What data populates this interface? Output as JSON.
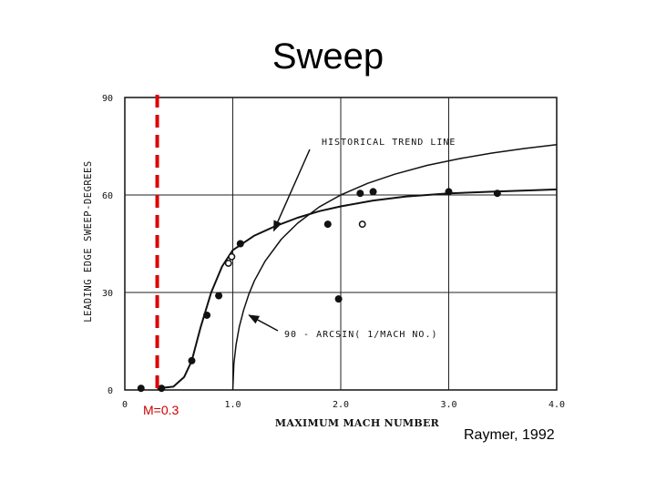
{
  "slide": {
    "title": "Sweep",
    "credit": "Raymer, 1992"
  },
  "chart_data": {
    "type": "scatter",
    "xlabel": "MAXIMUM MACH NUMBER",
    "ylabel": "LEADING EDGE SWEEP-DEGREES",
    "xlim": [
      0,
      4.0
    ],
    "ylim": [
      0,
      90
    ],
    "x_ticks": [
      0,
      1.0,
      2.0,
      3.0,
      4.0
    ],
    "x_tick_labels": [
      "0",
      "1.0",
      "2.0",
      "3.0",
      "4.0"
    ],
    "y_ticks": [
      0,
      30,
      60,
      90
    ],
    "y_tick_labels": [
      "0",
      "30",
      "60",
      "90"
    ],
    "grid": true,
    "series": [
      {
        "kind": "points",
        "marker": "filled",
        "x": [
          0.15,
          0.34,
          0.62,
          0.76,
          0.87,
          1.07,
          1.88,
          1.98,
          2.18,
          2.3,
          3.0,
          3.45
        ],
        "y": [
          0.5,
          0.5,
          9,
          23,
          29,
          45,
          51,
          28,
          60.5,
          61,
          61,
          60.5
        ]
      },
      {
        "kind": "points",
        "marker": "open",
        "x": [
          0.96,
          0.99,
          2.2
        ],
        "y": [
          39,
          41,
          51
        ]
      },
      {
        "kind": "line",
        "x": [
          0.3,
          0.45,
          0.55,
          0.62,
          0.7,
          0.8,
          0.9,
          1.0,
          1.2,
          1.4,
          1.6,
          1.8,
          2.0,
          2.3,
          2.6,
          3.0,
          3.4,
          3.8,
          4.0
        ],
        "y": [
          0.5,
          1,
          4,
          9,
          19,
          30,
          38,
          43,
          47.5,
          50.5,
          53,
          55,
          56.5,
          58.3,
          59.5,
          60.5,
          61,
          61.5,
          61.7
        ]
      },
      {
        "kind": "line",
        "x": [
          1.0,
          1.01,
          1.03,
          1.06,
          1.1,
          1.15,
          1.2,
          1.3,
          1.45,
          1.6,
          1.8,
          2.0,
          2.25,
          2.5,
          2.8,
          3.1,
          3.4,
          3.7,
          4.0
        ],
        "y": [
          0,
          8.1,
          13.9,
          19.4,
          24.6,
          29.6,
          33.6,
          39.7,
          46.4,
          51.3,
          56.3,
          60,
          63.6,
          66.4,
          69.1,
          71.2,
          72.9,
          74.3,
          75.5
        ]
      }
    ],
    "annotations": [
      {
        "text": "HISTORICAL TREND LINE",
        "arrow_to": [
          1.38,
          49
        ]
      },
      {
        "text": "90 - ARCSIN( 1/MACH NO.)",
        "arrow_to": [
          1.15,
          23
        ]
      }
    ],
    "reference_line": {
      "x": 0.3,
      "label": "M=0.3",
      "color": "#dd0000"
    }
  }
}
